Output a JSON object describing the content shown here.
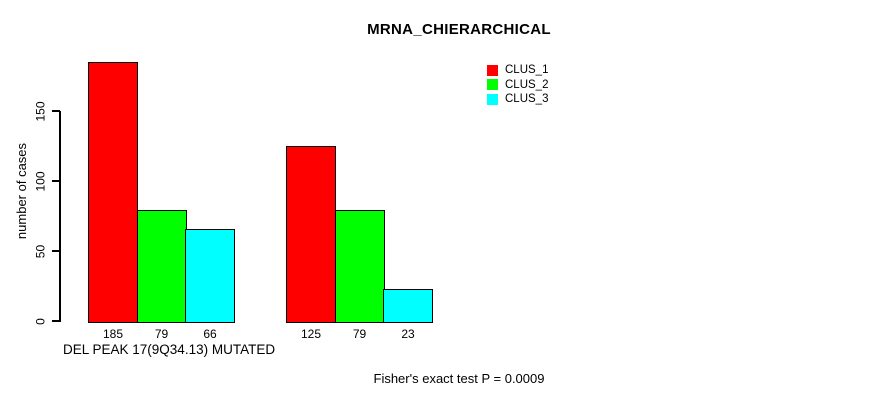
{
  "chart_data": {
    "type": "bar",
    "title": "MRNA_CHIERARCHICAL",
    "ylabel": "number of cases",
    "xlabel": "DEL PEAK 17(9Q34.13) MUTATED",
    "annotation": "Fisher's exact test P = 0.0009",
    "categories": [
      "DEL PEAK 17(9Q34.13) MUTATED",
      ""
    ],
    "series": [
      {
        "name": "CLUS_1",
        "color": "#ff0000",
        "values": [
          185,
          125
        ]
      },
      {
        "name": "CLUS_2",
        "color": "#00ff00",
        "values": [
          79,
          79
        ]
      },
      {
        "name": "CLUS_3",
        "color": "#00ffff",
        "values": [
          66,
          23
        ]
      }
    ],
    "bar_labels": [
      [
        185,
        79,
        66
      ],
      [
        125,
        79,
        23
      ]
    ],
    "yticks": [
      0,
      50,
      100,
      150
    ],
    "ylim": [
      0,
      190
    ],
    "grid": false,
    "legend_position": "top-right",
    "axis_color": "#000000",
    "background_color": "#ffffff"
  }
}
